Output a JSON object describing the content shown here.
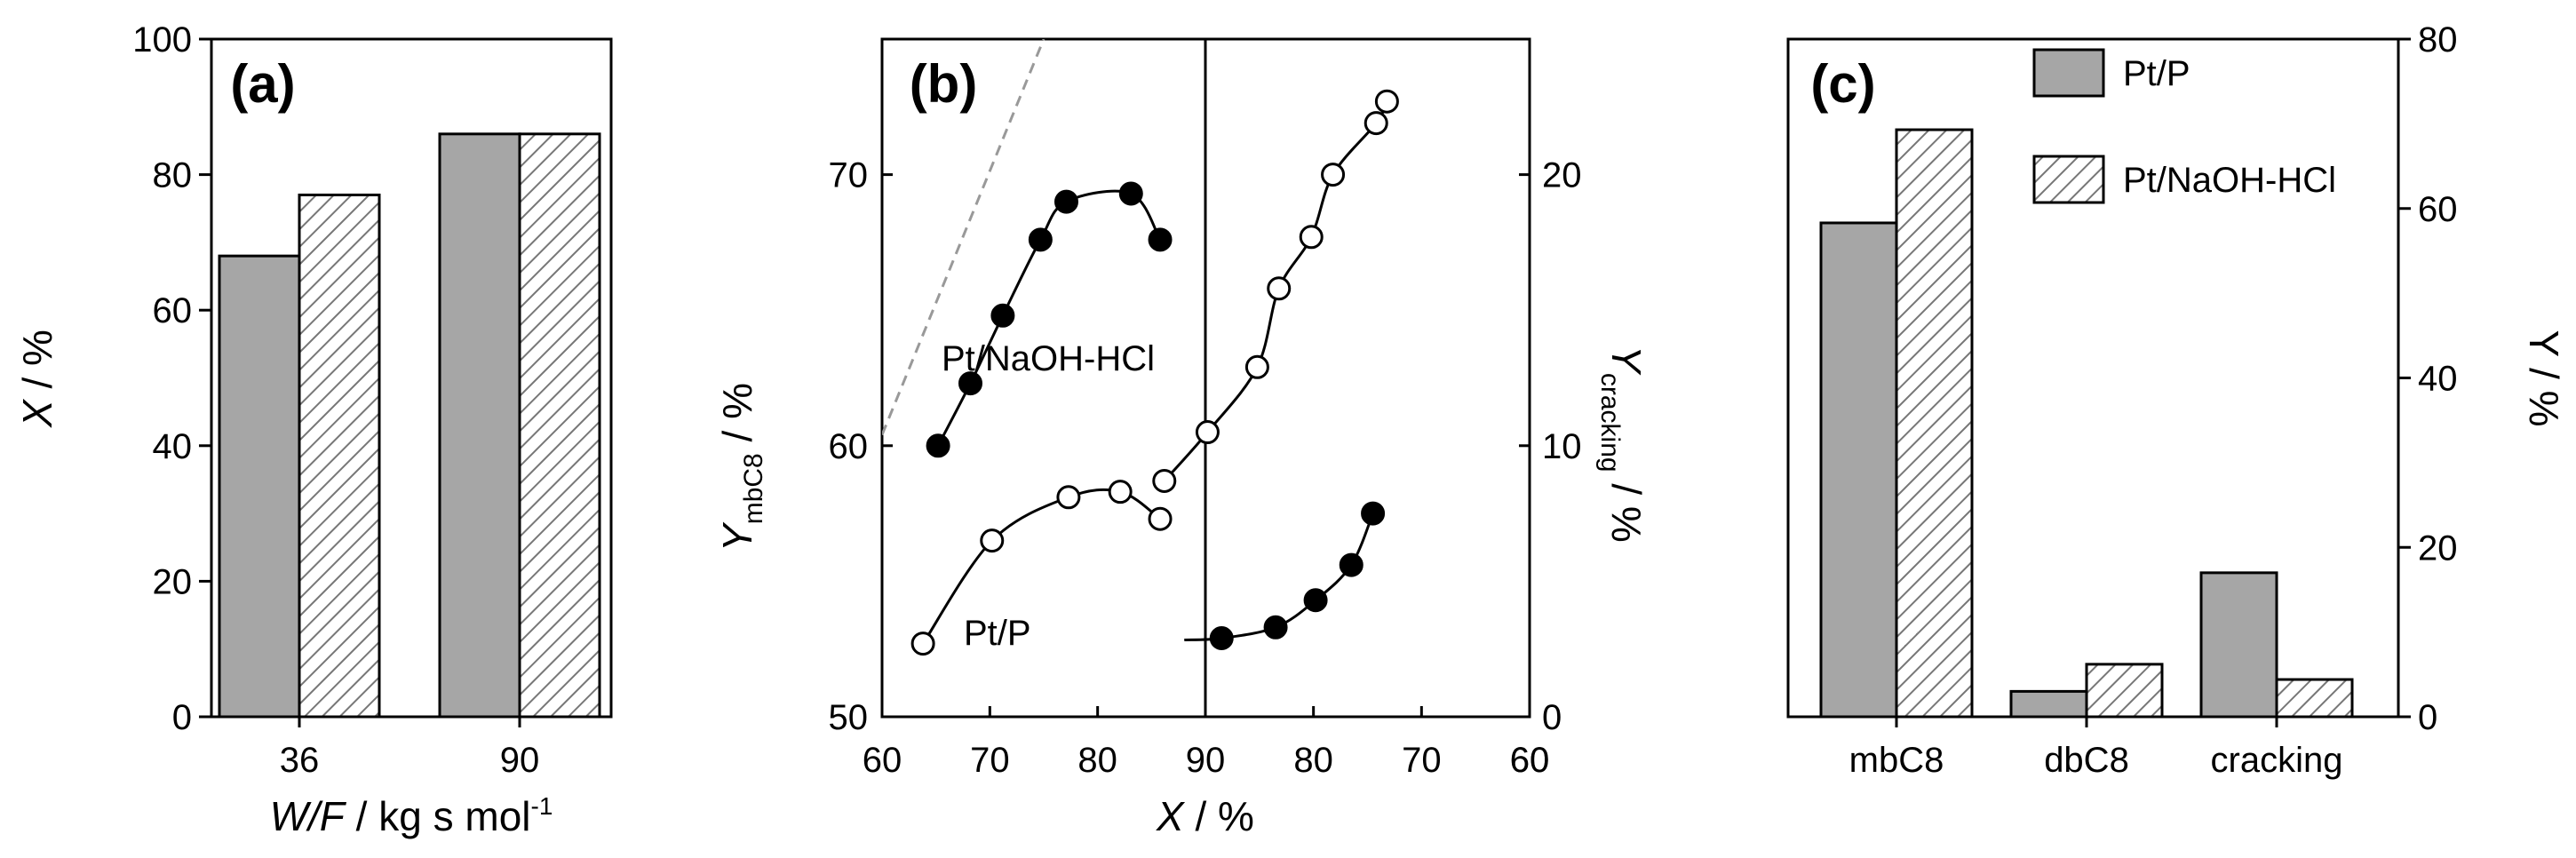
{
  "chart_data": [
    {
      "panel": "(a)",
      "type": "bar",
      "categories": [
        "36",
        "90"
      ],
      "series": [
        {
          "name": "Pt/P",
          "values": [
            68,
            86
          ]
        },
        {
          "name": "Pt/NaOH-HCl",
          "values": [
            77,
            86
          ]
        }
      ],
      "xlabel": {
        "italic": "W/F",
        "rest": " / kg s mol",
        "sup": "-1"
      },
      "ylabel": {
        "italic": "X",
        "rest": " / %"
      },
      "ylim": [
        0,
        100
      ],
      "yticks": [
        0,
        20,
        40,
        60,
        80,
        100
      ],
      "grid": false
    },
    {
      "panel": "(b)",
      "type": "scatter",
      "xlabel": {
        "italic": "X",
        "rest": " / %"
      },
      "left": {
        "xlim": [
          60,
          90
        ],
        "xticks": [
          60,
          70,
          80,
          90
        ],
        "ylim": [
          50,
          75
        ],
        "yticks": [
          50,
          60,
          70
        ],
        "ylabel": {
          "main": "Y",
          "sub": "mbC8",
          "rest": " / %"
        },
        "series": [
          {
            "name": "Pt/NaOH-HCl",
            "marker": "filled",
            "x": [
              65.2,
              68.2,
              71.2,
              74.7,
              77.1,
              83.1,
              85.8
            ],
            "y": [
              60.0,
              62.3,
              64.8,
              67.6,
              69.0,
              69.3,
              67.6
            ]
          },
          {
            "name": "Pt/P",
            "marker": "open",
            "x": [
              63.8,
              70.2,
              77.3,
              82.1,
              85.8
            ],
            "y": [
              52.7,
              56.5,
              58.1,
              58.3,
              57.3
            ]
          }
        ],
        "labels": {
          "upper": "Pt/NaOH-HCl",
          "lower": "Pt/P"
        },
        "reference_line": {
          "x": [
            60,
            75
          ],
          "y": [
            60.4,
            75
          ]
        }
      },
      "right": {
        "xlim": [
          60,
          90
        ],
        "xticks": [
          90,
          80,
          70,
          60
        ],
        "yticks": [
          0,
          10,
          20
        ],
        "ylim": [
          0,
          25
        ],
        "ylabel": {
          "main": "Y",
          "sub": "cracking",
          "rest": " / %"
        },
        "series": [
          {
            "name": "Pt/P",
            "marker": "open",
            "x": [
              93.8,
              89.8,
              85.2,
              83.2,
              80.2,
              78.2,
              74.2,
              73.2
            ],
            "y": [
              8.7,
              10.5,
              12.9,
              15.8,
              17.7,
              20.0,
              21.9,
              22.7
            ]
          },
          {
            "name": "Pt/NaOH-HCl",
            "marker": "filled",
            "x": [
              88.5,
              83.5,
              79.8,
              76.5,
              74.5
            ],
            "y": [
              2.9,
              3.3,
              4.3,
              5.6,
              7.5
            ]
          }
        ]
      }
    },
    {
      "panel": "(c)",
      "type": "bar",
      "categories": [
        "mbC8",
        "dbC8",
        "cracking"
      ],
      "series": [
        {
          "name": "Pt/P",
          "values": [
            58.3,
            3.0,
            17.0
          ]
        },
        {
          "name": "Pt/NaOH-HCl",
          "values": [
            69.3,
            6.2,
            4.4
          ]
        }
      ],
      "ylabel": "Y / %",
      "ylim": [
        0,
        80
      ],
      "yticks": [
        0,
        20,
        40,
        60,
        80
      ],
      "legend": [
        "Pt/P",
        "Pt/NaOH-HCl"
      ],
      "legend_position": "top-right",
      "grid": false
    }
  ]
}
